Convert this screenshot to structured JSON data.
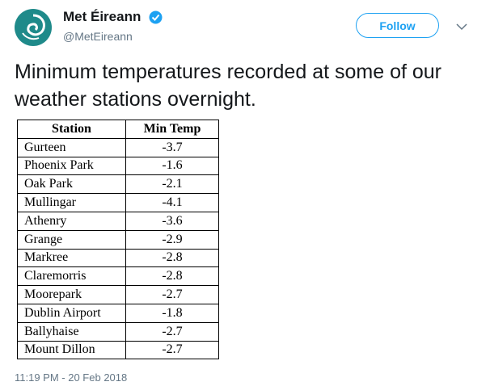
{
  "header": {
    "name": "Met Éireann",
    "handle": "@MetEireann",
    "follow": "Follow"
  },
  "text": "Minimum temperatures recorded at some of our weather stations overnight.",
  "table": {
    "columns": [
      "Station",
      "Min Temp"
    ],
    "rows": [
      [
        "Gurteen",
        -3.7
      ],
      [
        "Phoenix Park",
        -1.6
      ],
      [
        "Oak Park",
        -2.1
      ],
      [
        "Mullingar",
        -4.1
      ],
      [
        "Athenry",
        -3.6
      ],
      [
        "Grange",
        -2.9
      ],
      [
        "Markree",
        -2.8
      ],
      [
        "Claremorris",
        -2.8
      ],
      [
        "Moorepark",
        -2.7
      ],
      [
        "Dublin Airport",
        -1.8
      ],
      [
        "Ballyhaise",
        -2.7
      ],
      [
        "Mount Dillon",
        -2.7
      ]
    ]
  },
  "timestamp": "11:19 PM - 20 Feb 2018"
}
